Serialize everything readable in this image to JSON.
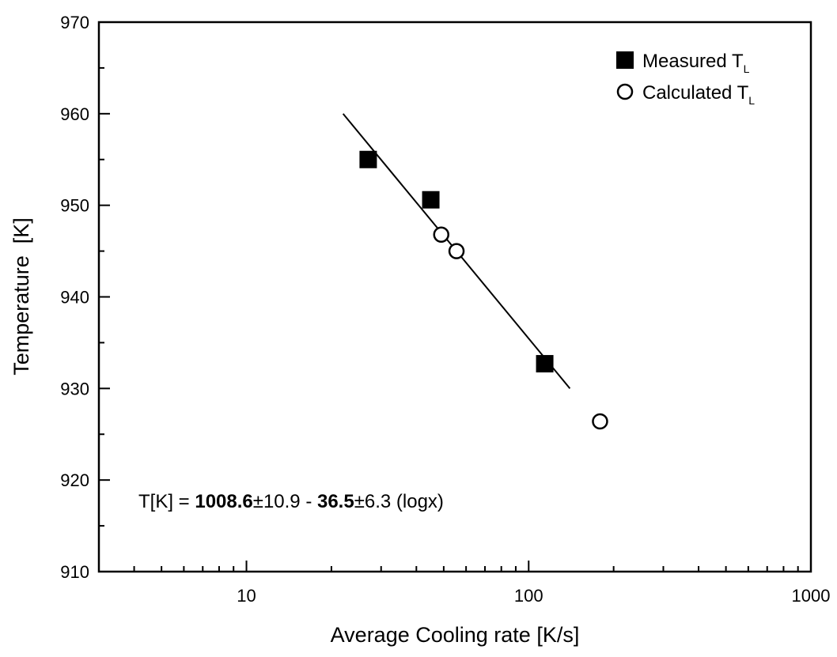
{
  "chart_data": {
    "type": "scatter",
    "xlabel": "Average Cooling rate [K/s]",
    "ylabel": "Temperature  [K]",
    "xscale": "log",
    "xlim": [
      3,
      1000
    ],
    "ylim": [
      910,
      970
    ],
    "xticks": [
      10,
      100,
      1000
    ],
    "xminorticks": [
      4,
      5,
      6,
      7,
      8,
      9,
      20,
      30,
      40,
      50,
      60,
      70,
      80,
      90,
      200,
      300,
      400,
      500,
      600,
      700,
      800,
      900
    ],
    "yticks": [
      910,
      920,
      930,
      940,
      950,
      960,
      970
    ],
    "yminorticks": [
      915,
      925,
      935,
      945,
      955,
      965
    ],
    "legend": "upper right",
    "series": [
      {
        "name": "Measured T",
        "name_sub": "L",
        "marker": "square",
        "color": "#000000",
        "x": [
          27,
          45,
          114
        ],
        "values": [
          955,
          950.6,
          932.7
        ]
      },
      {
        "name": "Calculated T",
        "name_sub": "L",
        "marker": "circle",
        "color": "#000000",
        "x": [
          49,
          55.5,
          179
        ],
        "values": [
          946.8,
          945,
          926.4
        ]
      }
    ],
    "fit": {
      "color": "#000000",
      "x": [
        22,
        140
      ],
      "values": [
        960,
        930
      ]
    },
    "annotation": [
      "T[K] = ",
      "1008.6",
      "±10.9 - ",
      "36.5",
      "±6.3 (logx)"
    ]
  }
}
